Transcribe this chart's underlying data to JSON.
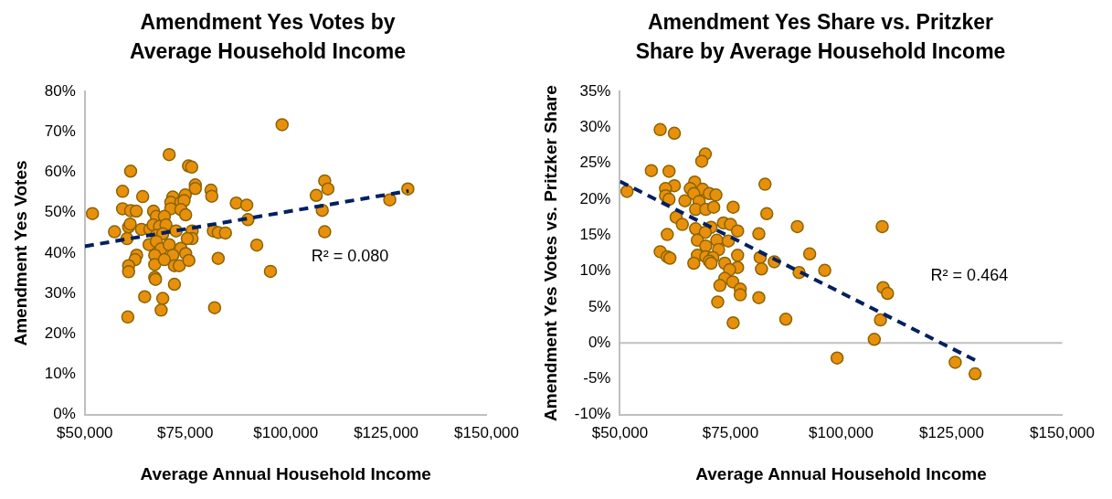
{
  "chart_data": [
    {
      "type": "scatter",
      "title": "Amendment Yes Votes by Average Household Income",
      "xlabel": "Average Annual Household Income",
      "ylabel": "Amendment Yes Votes",
      "marker": "circle",
      "grid": false,
      "legend": false,
      "xlim": [
        50000,
        150000
      ],
      "xticks": [
        {
          "value": 50000,
          "label": "$50,000"
        },
        {
          "value": 75000,
          "label": "$75,000"
        },
        {
          "value": 100000,
          "label": "$100,000"
        },
        {
          "value": 125000,
          "label": "$125,000"
        },
        {
          "value": 150000,
          "label": "$150,000"
        }
      ],
      "ylim": [
        0,
        80
      ],
      "yticks": [
        {
          "value": 0,
          "label": "0%"
        },
        {
          "value": 10,
          "label": "10%"
        },
        {
          "value": 20,
          "label": "20%"
        },
        {
          "value": 30,
          "label": "30%"
        },
        {
          "value": 40,
          "label": "40%"
        },
        {
          "value": 50,
          "label": "50%"
        },
        {
          "value": 60,
          "label": "60%"
        },
        {
          "value": 70,
          "label": "70%"
        },
        {
          "value": 80,
          "label": "80%"
        }
      ],
      "annotations": [
        "R² = 0.080"
      ],
      "series": [
        {
          "type": "scatter",
          "color": "#e8900c",
          "x": [
            51900,
            99100,
            71000,
            61400,
            75800,
            76600,
            59400,
            64400,
            77500,
            77500,
            81400,
            81600,
            75000,
            71900,
            71400,
            73900,
            74700,
            71400,
            73900,
            75100,
            59400,
            61400,
            62800,
            67100,
            67800,
            69800,
            87700,
            90300,
            90600,
            109700,
            110500,
            107600,
            109100,
            109700,
            125900,
            130400,
            57400,
            60900,
            61300,
            60500,
            64100,
            66200,
            67000,
            68600,
            70200,
            67800,
            69400,
            72700,
            76700,
            76700,
            75500,
            82000,
            83200,
            85000,
            66000,
            67800,
            69000,
            71000,
            73900,
            75100,
            71900,
            67400,
            62900,
            62500,
            60900,
            60900,
            67400,
            69800,
            72300,
            73500,
            75900,
            83200,
            92800,
            96200,
            67400,
            67600,
            72300,
            64900,
            69400,
            69000,
            82300,
            60700
          ],
          "values": [
            49.8,
            71.8,
            64.4,
            60.3,
            61.6,
            61.3,
            55.3,
            54.0,
            56.9,
            56.0,
            55.6,
            54.1,
            54.4,
            53.9,
            52.6,
            52.6,
            53.0,
            51.0,
            50.8,
            49.5,
            51.0,
            50.5,
            50.4,
            50.4,
            49.1,
            49.1,
            52.4,
            51.9,
            48.3,
            57.9,
            55.9,
            54.3,
            50.6,
            45.3,
            53.2,
            55.9,
            45.3,
            46.5,
            47.2,
            43.6,
            45.9,
            45.9,
            47.0,
            46.6,
            47.0,
            44.4,
            44.8,
            45.5,
            45.5,
            43.6,
            43.6,
            45.5,
            45.1,
            45.0,
            42.1,
            42.9,
            41.1,
            42.1,
            41.2,
            39.9,
            39.5,
            39.5,
            39.5,
            38.4,
            36.9,
            35.4,
            37.2,
            38.4,
            36.9,
            36.9,
            38.2,
            38.7,
            42.0,
            35.5,
            34.0,
            33.5,
            32.3,
            29.2,
            28.8,
            25.9,
            26.5,
            24.2
          ]
        },
        {
          "type": "line",
          "color": "#002060",
          "line_style": "dashed",
          "marker": "none",
          "x": [
            50000,
            130600
          ],
          "values": [
            41.7,
            55.4
          ]
        }
      ]
    },
    {
      "type": "scatter",
      "title": "Amendment Yes Share vs. Pritzker Share by Average Household Income",
      "xlabel": "Average Annual Household Income",
      "ylabel": "Amendment Yes Votes vs. Pritzker Share",
      "marker": "circle",
      "grid": false,
      "legend": false,
      "xlim": [
        50000,
        150000
      ],
      "xticks": [
        {
          "value": 50000,
          "label": "$50,000"
        },
        {
          "value": 75000,
          "label": "$75,000"
        },
        {
          "value": 100000,
          "label": "$100,000"
        },
        {
          "value": 125000,
          "label": "$125,000"
        },
        {
          "value": 150000,
          "label": "$150,000"
        }
      ],
      "ylim": [
        -10,
        35
      ],
      "yticks": [
        {
          "value": -10,
          "label": "-10%"
        },
        {
          "value": -5,
          "label": "-5%"
        },
        {
          "value": 0,
          "label": "0%"
        },
        {
          "value": 5,
          "label": "5%"
        },
        {
          "value": 10,
          "label": "10%"
        },
        {
          "value": 15,
          "label": "15%"
        },
        {
          "value": 20,
          "label": "20%"
        },
        {
          "value": 25,
          "label": "25%"
        },
        {
          "value": 30,
          "label": "30%"
        },
        {
          "value": 35,
          "label": "35%"
        }
      ],
      "ref_lines": [
        {
          "axis": "y",
          "value": 0,
          "color": "#bfbfbf"
        }
      ],
      "annotations": [
        "R² = 0.464"
      ],
      "series": [
        {
          "type": "scatter",
          "color": "#e8900c",
          "x": [
            51600,
            59100,
            62300,
            69300,
            68500,
            57100,
            61100,
            62300,
            60300,
            60300,
            61100,
            66900,
            65900,
            68700,
            70200,
            71700,
            64700,
            66700,
            67900,
            67100,
            69400,
            71200,
            62700,
            64100,
            75600,
            82800,
            83200,
            67100,
            70600,
            73400,
            75000,
            76600,
            60700,
            69300,
            67500,
            71900,
            74500,
            81400,
            69400,
            72300,
            59100,
            60700,
            61300,
            67500,
            69400,
            76600,
            71000,
            66700,
            70200,
            70600,
            73700,
            81700,
            82000,
            84900,
            76600,
            74800,
            90100,
            92900,
            90500,
            96300,
            73700,
            75500,
            77200,
            77200,
            72600,
            81400,
            72100,
            75600,
            87500,
            99100,
            109300,
            109500,
            110500,
            108900,
            107500,
            125800,
            130300
          ],
          "values": [
            21.1,
            29.7,
            29.2,
            26.3,
            25.3,
            24.0,
            23.9,
            21.9,
            21.5,
            20.5,
            20.0,
            22.4,
            21.5,
            21.4,
            20.8,
            20.6,
            19.8,
            20.8,
            19.7,
            18.6,
            18.6,
            18.9,
            17.5,
            16.5,
            18.9,
            22.1,
            18.0,
            15.9,
            16.1,
            16.7,
            16.5,
            15.6,
            15.1,
            15.4,
            14.3,
            14.3,
            14.2,
            15.2,
            13.5,
            13.0,
            12.7,
            12.0,
            11.8,
            12.2,
            12.0,
            12.2,
            11.9,
            11.1,
            11.4,
            11.1,
            11.1,
            11.9,
            10.3,
            11.3,
            10.5,
            10.2,
            16.2,
            12.4,
            9.8,
            10.1,
            9.0,
            8.5,
            7.5,
            6.7,
            8.0,
            6.3,
            5.7,
            2.8,
            3.3,
            -2.1,
            16.2,
            7.7,
            6.9,
            3.2,
            0.5,
            -2.7,
            -4.3
          ]
        },
        {
          "type": "line",
          "color": "#002060",
          "line_style": "dashed",
          "marker": "none",
          "x": [
            50000,
            130300
          ],
          "values": [
            22.5,
            -2.4
          ]
        }
      ]
    }
  ]
}
